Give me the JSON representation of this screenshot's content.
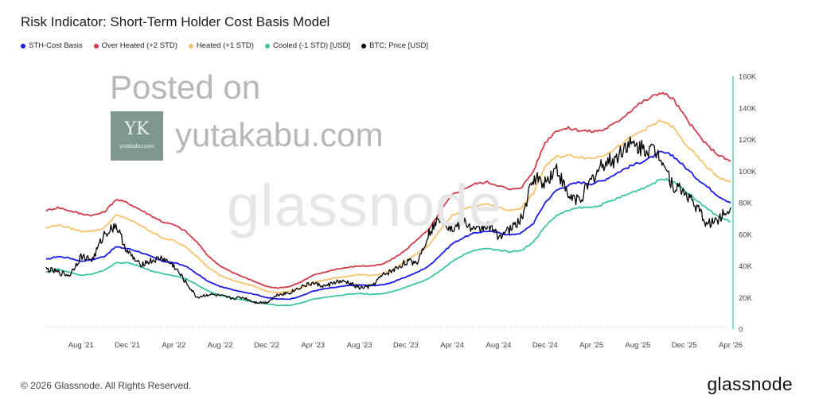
{
  "chart_data": {
    "type": "line",
    "title": "Risk Indicator: Short-Term Holder Cost Basis Model",
    "xlabel": "",
    "ylabel": "",
    "x_ticks": [
      "Aug '21",
      "Dec '21",
      "Apr '22",
      "Aug '22",
      "Dec '22",
      "Apr '23",
      "Aug '23",
      "Dec '23",
      "Apr '24",
      "Aug '24",
      "Dec '24",
      "Apr '25",
      "Aug '25",
      "Dec '25",
      "Apr '26"
    ],
    "y_ticks": [
      "0",
      "20K",
      "40K",
      "60K",
      "80K",
      "100K",
      "120K",
      "140K",
      "160K"
    ],
    "ylim": [
      0,
      160000
    ],
    "y_axis_side": "right",
    "legend_position": "top-left",
    "grid": false,
    "x": [
      "2021-05",
      "2021-06",
      "2021-07",
      "2021-08",
      "2021-09",
      "2021-10",
      "2021-11",
      "2021-12",
      "2022-01",
      "2022-02",
      "2022-03",
      "2022-04",
      "2022-05",
      "2022-06",
      "2022-07",
      "2022-08",
      "2022-09",
      "2022-10",
      "2022-11",
      "2022-12",
      "2023-01",
      "2023-02",
      "2023-03",
      "2023-04",
      "2023-05",
      "2023-06",
      "2023-07",
      "2023-08",
      "2023-09",
      "2023-10",
      "2023-11",
      "2023-12",
      "2024-01",
      "2024-02",
      "2024-03",
      "2024-04",
      "2024-05",
      "2024-06",
      "2024-07",
      "2024-08",
      "2024-09",
      "2024-10",
      "2024-11",
      "2024-12",
      "2025-01",
      "2025-02",
      "2025-03",
      "2025-04",
      "2025-05",
      "2025-06",
      "2025-07",
      "2025-08",
      "2025-09",
      "2025-10",
      "2025-11",
      "2025-12",
      "2026-01",
      "2026-02",
      "2026-03",
      "2026-04"
    ],
    "series": [
      {
        "name": "STH-Cost Basis",
        "color": "#1a1ae6",
        "values": [
          44000,
          46000,
          45000,
          43000,
          44000,
          46000,
          52000,
          51000,
          49000,
          46000,
          43000,
          42000,
          40000,
          35000,
          30000,
          27000,
          25000,
          23500,
          22000,
          20000,
          19000,
          19000,
          21000,
          24000,
          25500,
          26500,
          27500,
          28000,
          27500,
          28000,
          30000,
          33000,
          36000,
          40000,
          47000,
          54000,
          58000,
          61000,
          62000,
          61000,
          59500,
          61000,
          67000,
          80000,
          88000,
          91000,
          93000,
          92000,
          94000,
          98000,
          102000,
          105000,
          108000,
          112000,
          110000,
          103000,
          96000,
          90000,
          84000,
          80000
        ]
      },
      {
        "name": "Over Heated (+2 STD)",
        "color": "#d23a4a",
        "values": [
          75000,
          77000,
          75000,
          73000,
          72000,
          74000,
          82000,
          80000,
          76000,
          72000,
          68000,
          66000,
          62000,
          55000,
          46000,
          40000,
          36000,
          33000,
          30000,
          27000,
          26000,
          27000,
          30000,
          34000,
          36000,
          38000,
          39000,
          40000,
          40000,
          41000,
          45000,
          50000,
          57000,
          63000,
          75000,
          85000,
          89000,
          92000,
          93000,
          91000,
          88000,
          90000,
          100000,
          118000,
          126000,
          127000,
          126000,
          125000,
          126000,
          130000,
          136000,
          142000,
          146000,
          150000,
          146000,
          135000,
          125000,
          116000,
          110000,
          106000
        ]
      },
      {
        "name": "Heated (+1 STD)",
        "color": "#f7c26a",
        "values": [
          64000,
          66000,
          64000,
          62000,
          62000,
          64000,
          72000,
          70000,
          66000,
          62000,
          58000,
          56000,
          52000,
          46000,
          39000,
          34000,
          31000,
          29000,
          27000,
          24000,
          23000,
          24000,
          26000,
          29500,
          31000,
          32500,
          33500,
          34500,
          34000,
          35000,
          38000,
          43000,
          48000,
          53000,
          63000,
          72000,
          76000,
          78000,
          79000,
          77000,
          75000,
          77000,
          86000,
          103000,
          109000,
          110000,
          109000,
          108000,
          110000,
          114000,
          119000,
          124000,
          128000,
          132000,
          128000,
          118000,
          110000,
          102000,
          96000,
          93000
        ]
      },
      {
        "name": "Cooled (-1 STD) [USD]",
        "color": "#3cc4a4",
        "values": [
          36000,
          38000,
          36000,
          34000,
          35000,
          37000,
          42000,
          42000,
          40000,
          37000,
          35000,
          34000,
          32000,
          28000,
          24000,
          21500,
          19500,
          18500,
          17000,
          16000,
          15000,
          15000,
          16500,
          19000,
          20000,
          21000,
          22000,
          22500,
          22000,
          22500,
          24000,
          26500,
          29000,
          32000,
          37000,
          43000,
          47000,
          50000,
          51000,
          50000,
          49000,
          50000,
          55000,
          65000,
          72000,
          75000,
          77000,
          77000,
          79000,
          82000,
          85000,
          88000,
          91000,
          95000,
          94000,
          88000,
          82000,
          76000,
          71000,
          68000
        ]
      },
      {
        "name": "BTC: Price [USD]",
        "color": "#000000",
        "values": [
          38000,
          36000,
          34000,
          46000,
          44000,
          60000,
          66000,
          49000,
          41000,
          43000,
          45000,
          40000,
          30000,
          20000,
          22000,
          21000,
          19500,
          20000,
          17000,
          16800,
          22000,
          23000,
          27000,
          29000,
          27000,
          30000,
          29500,
          26000,
          27000,
          34000,
          37500,
          42500,
          42500,
          61000,
          71000,
          63000,
          68000,
          62000,
          66000,
          59000,
          63000,
          70000,
          96000,
          93000,
          102000,
          84000,
          82000,
          94000,
          105000,
          107000,
          117000,
          115000,
          114000,
          110000,
          91000,
          87000,
          78000,
          66000,
          70000,
          77000
        ]
      }
    ]
  },
  "watermarks": {
    "posted_on": "Posted on",
    "site": "yutakabu.com",
    "logo_mark": "YK",
    "logo_text": "yutakabu.com",
    "glassnode": "glassnode"
  },
  "footer": {
    "copyright": "© 2026 Glassnode. All Rights Reserved.",
    "brand": "glassnode"
  },
  "colors": {
    "y_axis_line": "#3cc4a4",
    "baseline_dots": "#b8b8b8"
  }
}
